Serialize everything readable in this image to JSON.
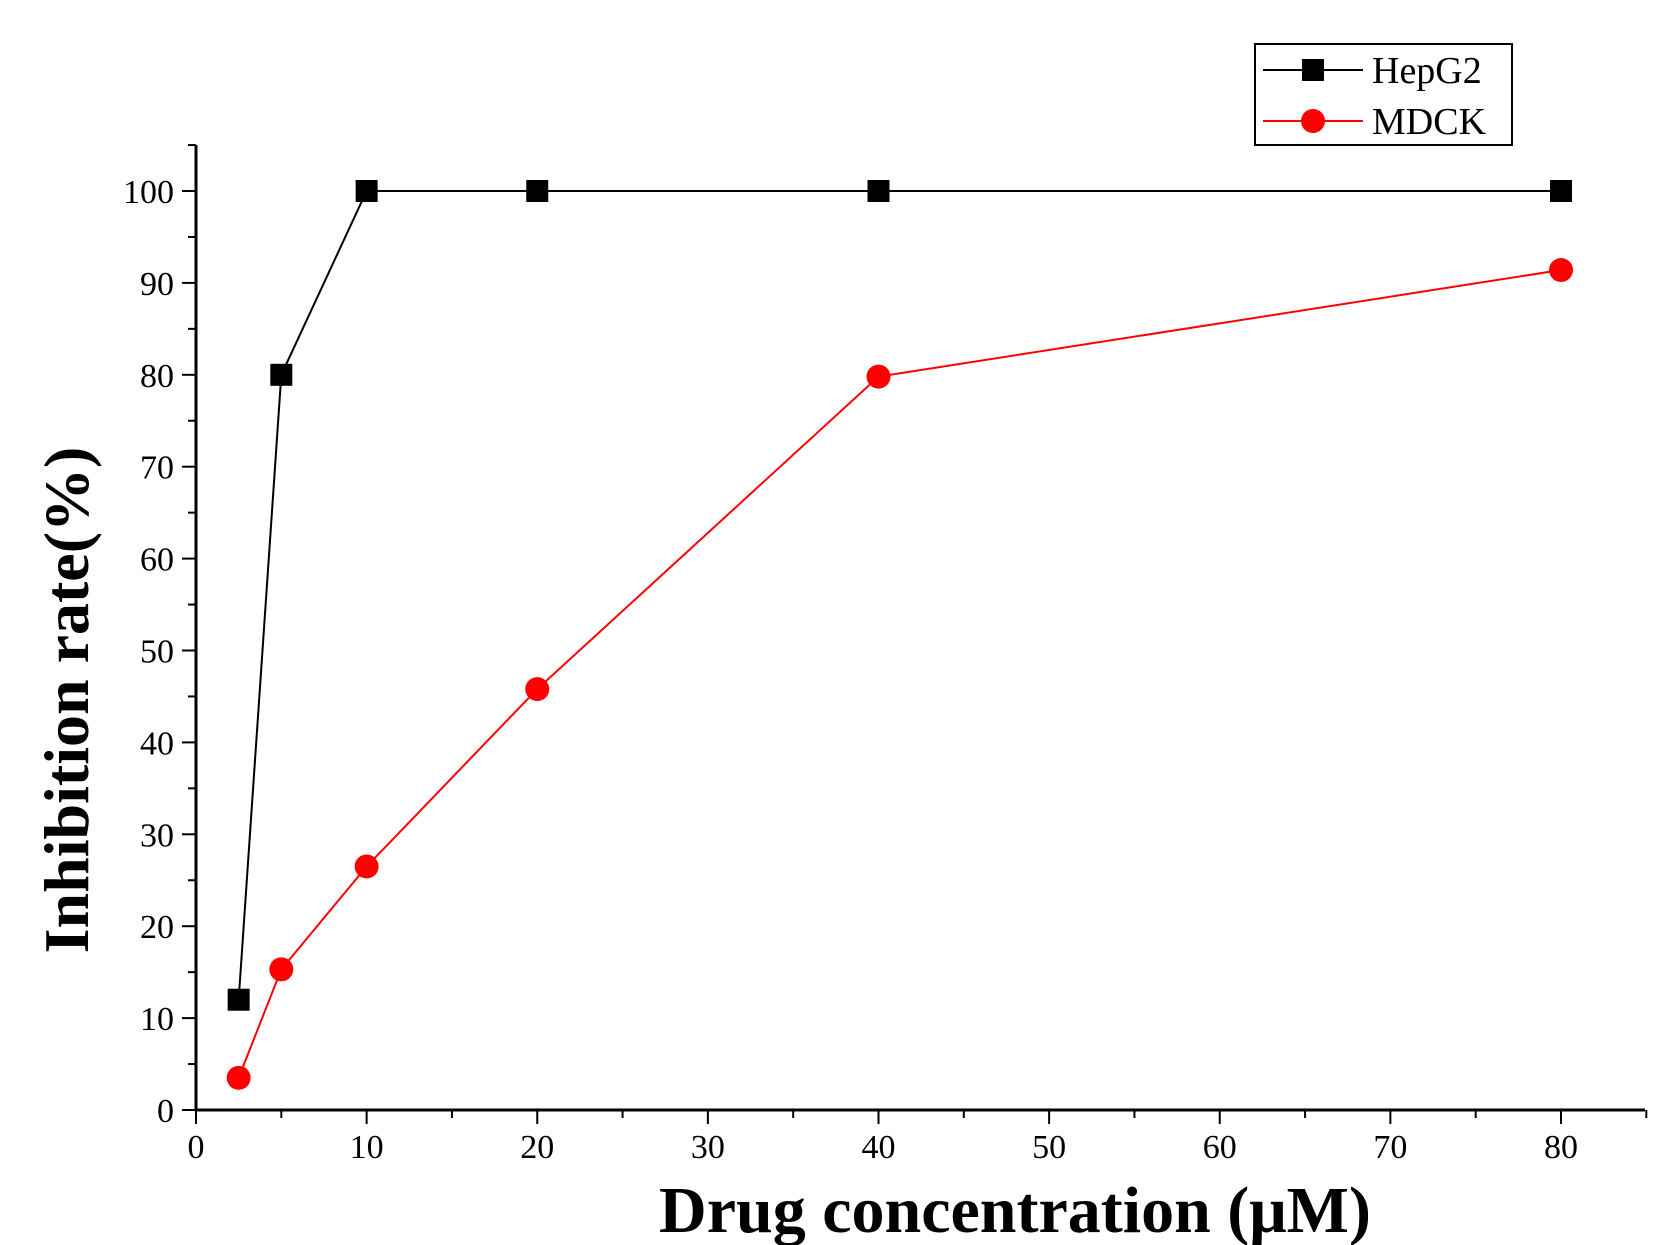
{
  "chart_data": {
    "type": "line",
    "title": "",
    "xlabel": "Drug concentration (μM)",
    "ylabel": "Inhibition rate(%)",
    "xlim": [
      0,
      85
    ],
    "ylim": [
      0,
      105
    ],
    "xticks": [
      0,
      10,
      20,
      30,
      40,
      50,
      60,
      70,
      80
    ],
    "yticks": [
      0,
      10,
      20,
      30,
      40,
      50,
      60,
      70,
      80,
      90,
      100
    ],
    "x": [
      2.5,
      5,
      10,
      20,
      40,
      80
    ],
    "series": [
      {
        "name": "HepG2",
        "values": [
          12,
          80,
          100,
          100,
          100,
          100
        ],
        "color": "#000000",
        "marker": "square"
      },
      {
        "name": "MDCK",
        "values": [
          3.5,
          15.3,
          26.5,
          45.8,
          79.8,
          91.4
        ],
        "color": "#ff0000",
        "marker": "circle"
      }
    ],
    "legend": {
      "position": "top-right"
    }
  }
}
